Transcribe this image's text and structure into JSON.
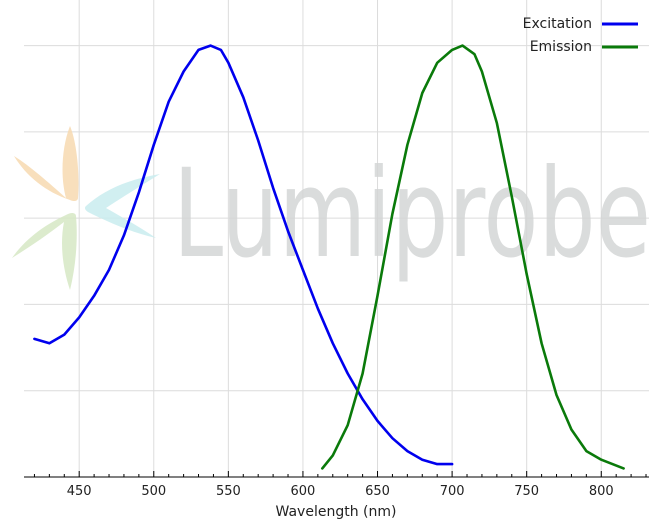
{
  "watermark": {
    "brand": "Lumiprobe",
    "text_color": "#d4d6d6",
    "petal_colors": [
      "#f7d9b0",
      "#c9ecef",
      "#d6e8c4"
    ]
  },
  "chart_data": {
    "type": "line",
    "title": "",
    "xlabel": "Wavelength (nm)",
    "ylabel": "",
    "xlim": [
      413,
      832
    ],
    "ylim": [
      0,
      1.05
    ],
    "xticks": [
      450,
      500,
      550,
      600,
      650,
      700,
      750,
      800
    ],
    "xtick_labels": [
      "450",
      "500",
      "550",
      "600",
      "650",
      "700",
      "750",
      "800"
    ],
    "minor_xtick_step": 10,
    "ygrid": [
      0.2,
      0.4,
      0.6,
      0.8,
      1.0
    ],
    "grid": true,
    "legend": "top-right",
    "series": [
      {
        "name": "Excitation",
        "color": "#0000ee",
        "x": [
          420,
          430,
          440,
          450,
          460,
          470,
          480,
          490,
          500,
          510,
          520,
          530,
          538,
          545,
          550,
          560,
          570,
          580,
          590,
          600,
          610,
          620,
          630,
          640,
          650,
          660,
          670,
          680,
          690,
          700
        ],
        "y": [
          0.32,
          0.31,
          0.33,
          0.37,
          0.42,
          0.48,
          0.56,
          0.66,
          0.77,
          0.87,
          0.94,
          0.99,
          1.0,
          0.99,
          0.96,
          0.88,
          0.78,
          0.67,
          0.57,
          0.48,
          0.39,
          0.31,
          0.24,
          0.18,
          0.13,
          0.09,
          0.06,
          0.04,
          0.03,
          0.03
        ]
      },
      {
        "name": "Emission",
        "color": "#0a7a0a",
        "x": [
          613,
          620,
          630,
          640,
          650,
          660,
          670,
          680,
          690,
          700,
          707,
          715,
          720,
          730,
          740,
          750,
          760,
          770,
          780,
          790,
          800,
          815
        ],
        "y": [
          0.02,
          0.05,
          0.12,
          0.24,
          0.42,
          0.61,
          0.77,
          0.89,
          0.96,
          0.99,
          1.0,
          0.98,
          0.94,
          0.82,
          0.65,
          0.47,
          0.31,
          0.19,
          0.11,
          0.06,
          0.04,
          0.02
        ]
      }
    ]
  }
}
